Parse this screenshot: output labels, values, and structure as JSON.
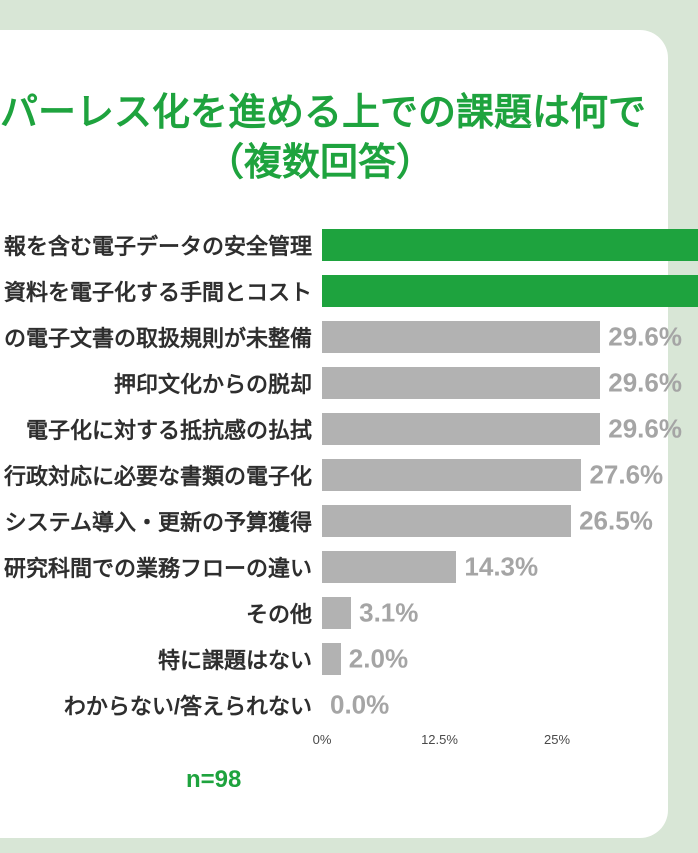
{
  "header": {
    "title_line1": "パーレス化を進める上での課題は何で",
    "title_line2": "（複数回答）"
  },
  "footer": {
    "sample_size": "n=98"
  },
  "colors": {
    "accent_green": "#1ea33e",
    "bar_gray": "#b2b2b2",
    "value_label_gray": "#a5a5a5",
    "background_green": "#d8e6d6",
    "card_white": "#ffffff"
  },
  "chart_data": {
    "type": "bar",
    "orientation": "horizontal",
    "title_visible": "パーレス化を進める上での課題は何で（複数回答）",
    "categories": [
      "報を含む電子データの安全管理",
      "資料を電子化する手間とコスト",
      "の電子文書の取扱規則が未整備",
      "押印文化からの脱却",
      "電子化に対する抵抗感の払拭",
      "行政対応に必要な書類の電子化",
      "システム導入・更新の予算獲得",
      "研究科間での業務フローの違い",
      "その他",
      "特に課題はない",
      "わからない/答えられない"
    ],
    "values": [
      40,
      40,
      29.6,
      29.6,
      29.6,
      27.6,
      26.5,
      14.3,
      3.1,
      2.0,
      0.0
    ],
    "value_labels": [
      "",
      "",
      "29.6%",
      "29.6%",
      "29.6%",
      "27.6%",
      "26.5%",
      "14.3%",
      "3.1%",
      "2.0%",
      "0.0%"
    ],
    "bar_colors": [
      "#1ea33e",
      "#1ea33e",
      "#b2b2b2",
      "#b2b2b2",
      "#b2b2b2",
      "#b2b2b2",
      "#b2b2b2",
      "#b2b2b2",
      "#b2b2b2",
      "#b2b2b2",
      "#b2b2b2"
    ],
    "x_ticks": [
      {
        "label": "0%",
        "percent": 0
      },
      {
        "label": "12.5%",
        "percent": 12.5
      },
      {
        "label": "25%",
        "percent": 25
      }
    ],
    "xlim_visible": [
      0,
      34
    ],
    "grid": false,
    "legend": false
  }
}
